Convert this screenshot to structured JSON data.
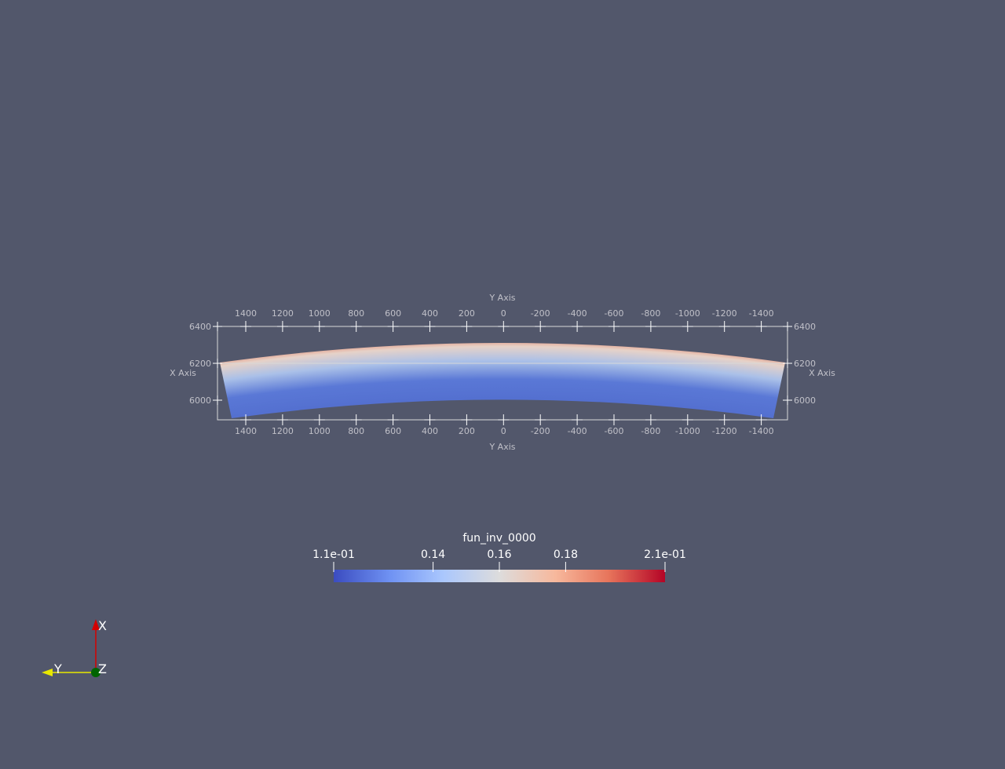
{
  "viewer": {
    "background": "#52576b",
    "grid_color": "#d8d8d8",
    "label_color": "#c0c0c8"
  },
  "axes_grid": {
    "y_axis_title": "Y Axis",
    "x_axis_title": "X Axis",
    "y_ticks": [
      "1400",
      "1200",
      "1000",
      "800",
      "600",
      "400",
      "200",
      "0",
      "-200",
      "-400",
      "-600",
      "-800",
      "-1000",
      "-1200",
      "-1400"
    ],
    "x_ticks": [
      "6400",
      "6200",
      "6000"
    ]
  },
  "colorbar": {
    "title": "fun_inv_0000",
    "labels": [
      "1.1e-01",
      "0.14",
      "0.16",
      "0.18",
      "2.1e-01"
    ],
    "min": 0.11,
    "max": 0.21,
    "label_values": [
      0.11,
      0.14,
      0.16,
      0.18,
      0.21
    ],
    "colors": [
      "#3b4cc0",
      "#6f92f3",
      "#aac7fd",
      "#dddcdc",
      "#f7b89c",
      "#e7745b",
      "#b40426"
    ]
  },
  "orientation_widget": {
    "x_label": "X",
    "y_label": "Y",
    "z_label": "Z",
    "x_color": "#d40000",
    "y_color": "#e8e800",
    "z_color": "#006400"
  }
}
